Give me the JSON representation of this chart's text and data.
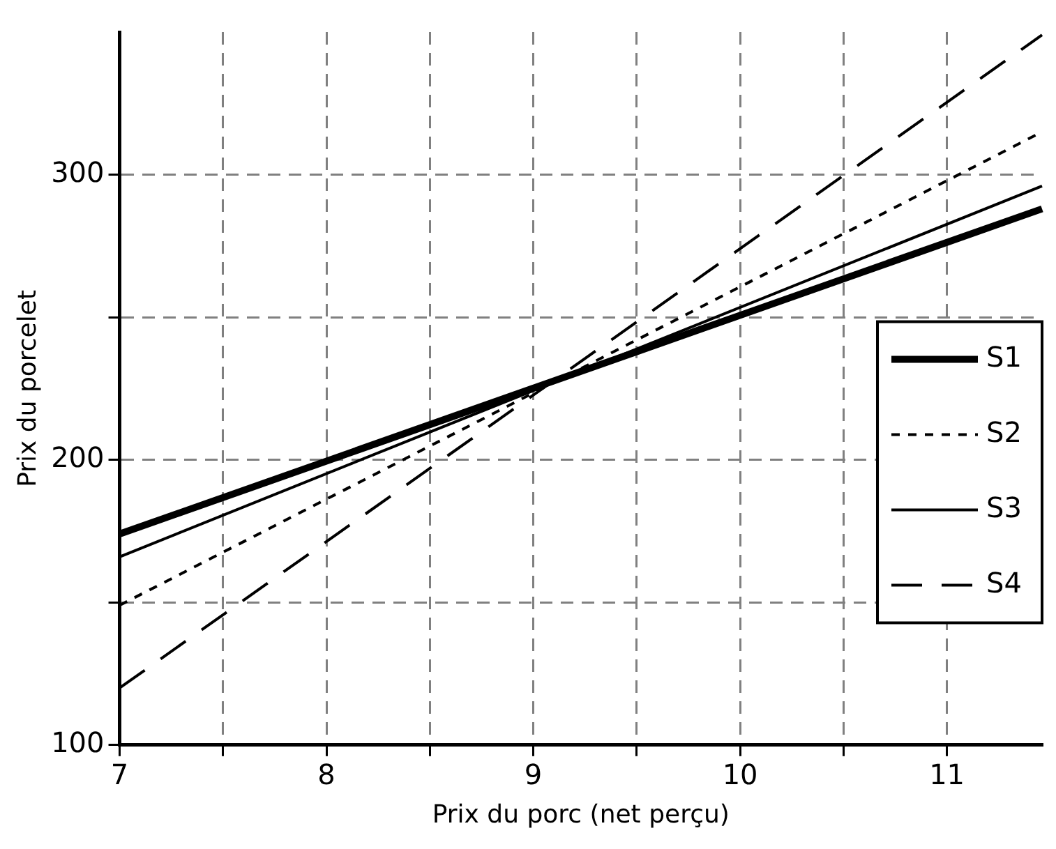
{
  "chart_data": {
    "type": "line",
    "xlabel": "Prix du porc (net perçu)",
    "ylabel": "Prix du porcelet",
    "xlim": [
      7,
      11.46
    ],
    "ylim": [
      100,
      350
    ],
    "xticks": [
      7,
      {
        "value": 7.5,
        "label": null
      },
      8,
      {
        "value": 8.5,
        "label": null
      },
      9,
      {
        "value": 9.5,
        "label": null
      },
      10,
      {
        "value": 10.5,
        "label": null
      },
      11
    ],
    "yticks": [
      100,
      {
        "value": 150,
        "label": null
      },
      200,
      {
        "value": 250,
        "label": null
      },
      300
    ],
    "grid": true,
    "legend": "right",
    "marker": "none",
    "x": [
      7,
      11.46
    ],
    "series": [
      {
        "name": "S1",
        "color": "#000000",
        "line_style": "solid",
        "values": [
          174,
          288
        ]
      },
      {
        "name": "S2",
        "color": "#000000",
        "line_style": "dotted",
        "values": [
          149,
          315
        ]
      },
      {
        "name": "S3",
        "color": "#000000",
        "line_style": "solid",
        "values": [
          166,
          296
        ]
      },
      {
        "name": "S4",
        "color": "#000000",
        "line_style": "dashed",
        "values": [
          120,
          349
        ]
      }
    ]
  }
}
